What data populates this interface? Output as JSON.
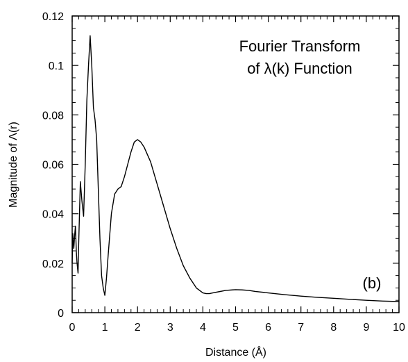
{
  "chart_data": {
    "type": "line",
    "title_lines": [
      "Fourier Transform",
      "of λ(k) Function"
    ],
    "panel_label": "(b)",
    "xlabel": "Distance (Å)",
    "ylabel": "Magnitude of Λ(r)",
    "xlim": [
      0,
      10
    ],
    "ylim": [
      0,
      0.12
    ],
    "x_ticks": [
      0,
      1,
      2,
      3,
      4,
      5,
      6,
      7,
      8,
      9,
      10
    ],
    "x_tick_labels": [
      "0",
      "1",
      "2",
      "3",
      "4",
      "5",
      "6",
      "7",
      "8",
      "9",
      "10"
    ],
    "y_ticks": [
      0,
      0.02,
      0.04,
      0.06,
      0.08,
      0.1,
      0.12
    ],
    "y_tick_labels": [
      "0",
      "0.02",
      "0.04",
      "0.06",
      "0.08",
      "0.1",
      "0.12"
    ],
    "grid": false,
    "legend": "none",
    "line_color": "#000000",
    "series": [
      {
        "x": [
          0.0,
          0.02,
          0.05,
          0.08,
          0.1,
          0.13,
          0.15,
          0.18,
          0.2,
          0.25,
          0.3,
          0.35,
          0.4,
          0.45,
          0.5,
          0.55,
          0.6,
          0.65,
          0.7,
          0.75,
          0.8,
          0.85,
          0.9,
          0.95,
          1.0,
          1.05,
          1.1,
          1.2,
          1.3,
          1.4,
          1.5,
          1.6,
          1.7,
          1.8,
          1.9,
          2.0,
          2.1,
          2.2,
          2.4,
          2.6,
          2.8,
          3.0,
          3.2,
          3.4,
          3.6,
          3.8,
          4.0,
          4.1,
          4.2,
          4.3,
          4.5,
          4.7,
          4.9,
          5.0,
          5.2,
          5.4,
          5.6,
          6.0,
          6.5,
          7.0,
          7.5,
          8.0,
          8.5,
          9.0,
          9.5,
          10.0
        ],
        "y": [
          0.02,
          0.032,
          0.026,
          0.032,
          0.035,
          0.024,
          0.02,
          0.016,
          0.028,
          0.053,
          0.045,
          0.039,
          0.06,
          0.086,
          0.1,
          0.112,
          0.1,
          0.083,
          0.078,
          0.07,
          0.05,
          0.03,
          0.015,
          0.01,
          0.007,
          0.014,
          0.023,
          0.04,
          0.048,
          0.05,
          0.051,
          0.055,
          0.06,
          0.065,
          0.069,
          0.07,
          0.069,
          0.067,
          0.061,
          0.052,
          0.043,
          0.034,
          0.026,
          0.019,
          0.014,
          0.01,
          0.008,
          0.0077,
          0.0077,
          0.008,
          0.0085,
          0.009,
          0.0092,
          0.0093,
          0.0092,
          0.009,
          0.0086,
          0.008,
          0.0073,
          0.0067,
          0.0062,
          0.0058,
          0.0054,
          0.005,
          0.0047,
          0.0045
        ]
      }
    ]
  }
}
